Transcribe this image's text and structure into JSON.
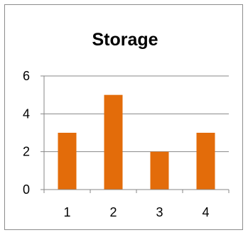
{
  "chart_data": {
    "type": "bar",
    "title": "Storage",
    "xlabel": "",
    "ylabel": "",
    "categories": [
      "1",
      "2",
      "3",
      "4"
    ],
    "values": [
      3,
      5,
      2,
      3
    ],
    "ylim": [
      0,
      6
    ],
    "yticks": [
      "0",
      "2",
      "4",
      "6"
    ],
    "grid": true,
    "legend": "none",
    "bar_color": "#e36c0a",
    "grid_color": "#878787"
  }
}
